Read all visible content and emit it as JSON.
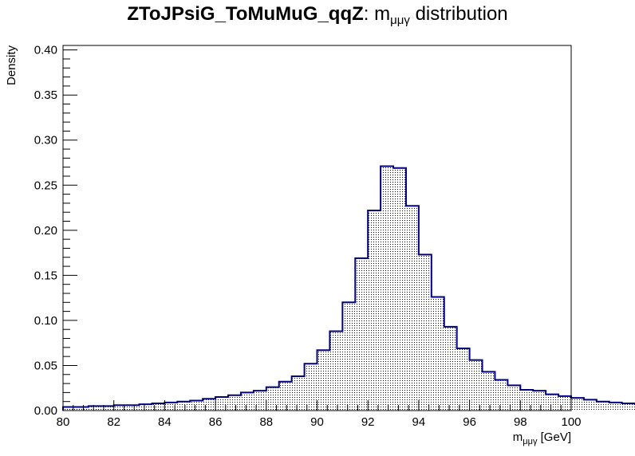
{
  "title": {
    "bold_part": "ZToJPsiG_ToMuMuG_qqZ",
    "rest_part": ": m",
    "subscript": "μμγ",
    "suffix": " distribution"
  },
  "colors": {
    "line": "#000080",
    "fill_pattern": "#000000",
    "frame": "#000000"
  },
  "chart_data": {
    "type": "bar",
    "style": "step histogram with dotted hatch fill",
    "xlabel": {
      "main": "m",
      "sub": "μμγ",
      "unit": " [GeV]"
    },
    "ylabel": "Density",
    "xlim": [
      80,
      100
    ],
    "ylim": [
      0,
      0.405
    ],
    "x_ticks": [
      "80",
      "82",
      "84",
      "86",
      "88",
      "90",
      "92",
      "94",
      "96",
      "98",
      "100"
    ],
    "x_tick_values": [
      80,
      82,
      84,
      86,
      88,
      90,
      92,
      94,
      96,
      98,
      100
    ],
    "y_ticks": [
      "0.00",
      "0.05",
      "0.10",
      "0.15",
      "0.20",
      "0.25",
      "0.30",
      "0.35",
      "0.40"
    ],
    "y_tick_values": [
      0,
      0.05,
      0.1,
      0.15,
      0.2,
      0.25,
      0.3,
      0.35,
      0.4
    ],
    "bin_edges_start": 80,
    "bin_width": 0.5,
    "values": [
      0.004,
      0.004,
      0.005,
      0.005,
      0.006,
      0.006,
      0.007,
      0.008,
      0.009,
      0.01,
      0.011,
      0.013,
      0.015,
      0.017,
      0.02,
      0.022,
      0.026,
      0.032,
      0.038,
      0.052,
      0.067,
      0.088,
      0.12,
      0.169,
      0.222,
      0.271,
      0.269,
      0.227,
      0.173,
      0.126,
      0.093,
      0.069,
      0.056,
      0.043,
      0.034,
      0.028,
      0.023,
      0.022,
      0.018,
      0.016,
      0.014,
      0.012,
      0.01,
      0.009,
      0.008,
      0.007,
      0.006,
      0.005
    ]
  }
}
